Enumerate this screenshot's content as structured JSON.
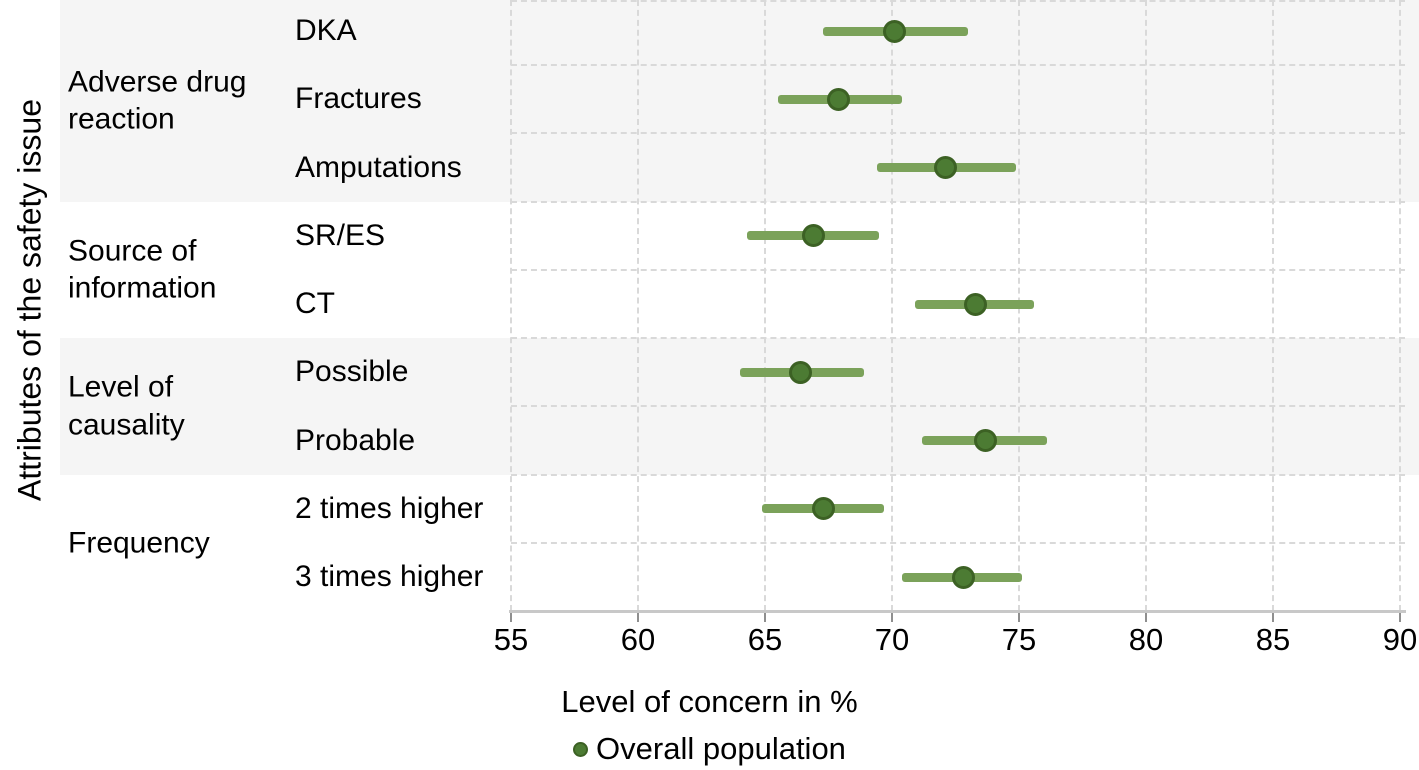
{
  "chart_data": {
    "type": "scatter",
    "subtype": "dot-and-interval (forest plot)",
    "xlabel": "Level of concern in %",
    "ylabel": "Attributes of the safety issue",
    "xlim": [
      55,
      90
    ],
    "xticks": [
      55,
      60,
      65,
      70,
      75,
      80,
      85,
      90
    ],
    "grid": "dashed vertical at each x tick, dashed horizontal between category rows",
    "legend_position": "bottom center",
    "legend": {
      "marker": "filled-circle",
      "label": "Overall population"
    },
    "groups": [
      {
        "label": "Adverse drug\nreaction",
        "shaded": true,
        "items": [
          {
            "label": "DKA",
            "value": 70.1,
            "ci_low": 67.3,
            "ci_high": 73.0
          },
          {
            "label": "Fractures",
            "value": 67.9,
            "ci_low": 65.5,
            "ci_high": 70.4
          },
          {
            "label": "Amputations",
            "value": 72.1,
            "ci_low": 69.4,
            "ci_high": 74.9
          }
        ]
      },
      {
        "label": "Source of\ninformation",
        "shaded": false,
        "items": [
          {
            "label": "SR/ES",
            "value": 66.9,
            "ci_low": 64.3,
            "ci_high": 69.5
          },
          {
            "label": "CT",
            "value": 73.3,
            "ci_low": 70.9,
            "ci_high": 75.6
          }
        ]
      },
      {
        "label": "Level of\ncausality",
        "shaded": true,
        "items": [
          {
            "label": "Possible",
            "value": 66.4,
            "ci_low": 64.0,
            "ci_high": 68.9
          },
          {
            "label": "Probable",
            "value": 73.7,
            "ci_low": 71.2,
            "ci_high": 76.1
          }
        ]
      },
      {
        "label": "Frequency",
        "shaded": false,
        "items": [
          {
            "label": "2 times higher",
            "value": 67.3,
            "ci_low": 64.9,
            "ci_high": 69.7
          },
          {
            "label": "3 times higher",
            "value": 72.8,
            "ci_low": 70.4,
            "ci_high": 75.1
          }
        ]
      }
    ],
    "colors": {
      "interval_line": "#7ba25a",
      "point_fill": "#4c7b33",
      "point_stroke": "#3c6124",
      "band_shade": "#f5f5f5",
      "gridline": "#d9d9d9",
      "axis_line": "#c8c8c8",
      "tick": "#8f8f8f",
      "text": "#000000"
    }
  }
}
